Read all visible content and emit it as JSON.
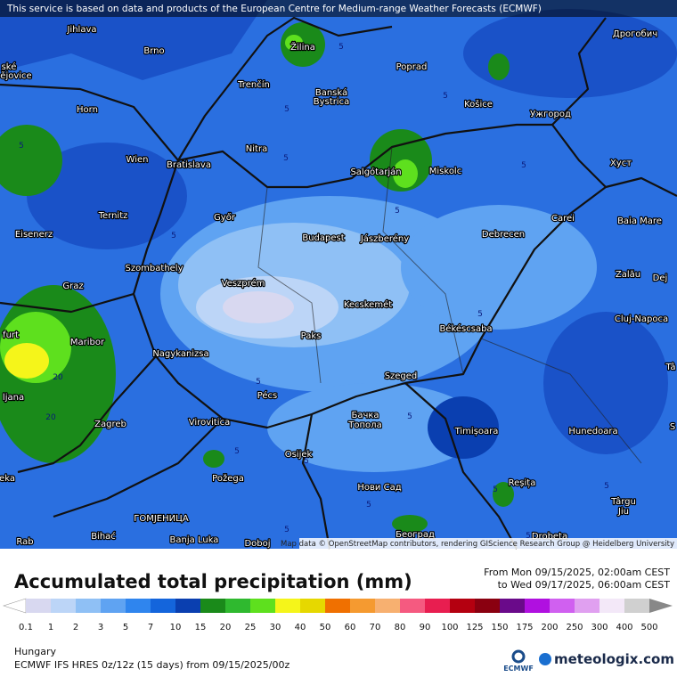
{
  "banner": "This service is based on data and products of the European Centre for Medium-range Weather Forecasts (ECMWF)",
  "map": {
    "places": [
      "Jihlava",
      "Brno",
      "Žilina",
      "Poprad",
      "Дрогобич",
      "ské",
      "ějovice",
      "Trenčín",
      "Banská",
      "Bystrica",
      "Košice",
      "Ужгород",
      "Horn",
      "Nitra",
      "Wien",
      "Bratislava",
      "Salgótarján",
      "Miskolc",
      "Хуст",
      "Ternitz",
      "Győr",
      "Carei",
      "Baia Mare",
      "Eisenerz",
      "Budapest",
      "Jászberény",
      "Debrecen",
      "Szombathely",
      "Zalău",
      "Graz",
      "Veszprém",
      "Dej",
      "Kecskemét",
      "Cluj-Napoca",
      "furt",
      "Maribor",
      "Paks",
      "Békéscsaba",
      "Nagykanizsa",
      "Szeged",
      "Tâ",
      "ljana",
      "Pécs",
      "Zagreb",
      "Virovitica",
      "Бачка",
      "Топола",
      "Timișoara",
      "Hunedoara",
      "S",
      "Osijek",
      "Požega",
      "eka",
      "Нови Сад",
      "Reșița",
      "Târgu",
      "Jiu",
      "ГОМЈЕНИЦА",
      "Београд",
      "Bihać",
      "Banja Luka",
      "Doboj",
      "Drobeta",
      "Rab"
    ],
    "contour_labels": [
      5,
      5,
      5,
      5,
      5,
      5,
      5,
      5,
      5,
      5,
      5,
      5,
      5,
      5,
      5,
      5,
      5,
      5,
      20,
      20
    ],
    "attribution": "Map data © OpenStreetMap contributors, rendering GIScience Research Group @ Heidelberg University"
  },
  "legend": {
    "title": "Accumulated total precipitation (mm)",
    "period_from": "From Mon 09/15/2025, 02:00am CEST",
    "period_to": "to Wed 09/17/2025, 06:00am CEST",
    "ticks": [
      0.1,
      1,
      2,
      3,
      5,
      7,
      10,
      15,
      20,
      25,
      30,
      40,
      50,
      60,
      70,
      80,
      90,
      100,
      125,
      150,
      175,
      200,
      250,
      300,
      400,
      500
    ],
    "colors": [
      "#d8d8f0",
      "#bcd5f7",
      "#8fc0f5",
      "#5fa3f2",
      "#2f85ee",
      "#1465dc",
      "#0a3fb0",
      "#1a8a1a",
      "#2fb92f",
      "#5ee01e",
      "#f5f51a",
      "#e6d800",
      "#f07000",
      "#f59a30",
      "#f7b070",
      "#f55a80",
      "#e81e50",
      "#b40010",
      "#8a0010",
      "#6a0a8a",
      "#b010e0",
      "#d060f0",
      "#e0a0f0",
      "#f3e8f8",
      "#d0d0d0"
    ],
    "under_color": "#ffffff",
    "over_color": "#888888"
  },
  "region": "Hungary",
  "model": "ECMWF IFS HRES 0z/12z (15 days) from  09/15/2025/00z",
  "logos": [
    "ECMWF",
    "meteologix.com"
  ]
}
